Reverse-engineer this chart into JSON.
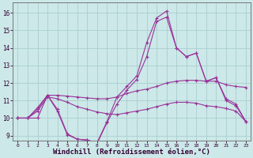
{
  "background_color": "#cce8e8",
  "grid_color": "#aacece",
  "line_color": "#993399",
  "marker_color": "#993399",
  "xlabel": "Windchill (Refroidissement éolien,°C)",
  "xlabel_fontsize": 6.5,
  "ytick_labels": [
    "9",
    "10",
    "11",
    "12",
    "13",
    "14",
    "15",
    "16"
  ],
  "yticks": [
    9,
    10,
    11,
    12,
    13,
    14,
    15,
    16
  ],
  "xticks": [
    0,
    1,
    2,
    3,
    4,
    5,
    6,
    7,
    8,
    9,
    10,
    11,
    12,
    13,
    14,
    15,
    16,
    17,
    18,
    19,
    20,
    21,
    22,
    23
  ],
  "xlim": [
    -0.5,
    23.5
  ],
  "ylim": [
    8.7,
    16.6
  ],
  "lines": [
    {
      "x": [
        0,
        1,
        2,
        3,
        4,
        5,
        6,
        7,
        8,
        9,
        10,
        11,
        12,
        13,
        14,
        15,
        16,
        17,
        18,
        19,
        20,
        21,
        22,
        23
      ],
      "y": [
        10.0,
        10.0,
        10.6,
        11.3,
        10.5,
        9.1,
        8.8,
        8.75,
        8.6,
        9.8,
        11.2,
        11.8,
        12.4,
        14.3,
        15.7,
        16.1,
        14.0,
        13.5,
        13.7,
        12.1,
        12.3,
        11.1,
        10.8,
        9.8
      ]
    },
    {
      "x": [
        0,
        1,
        2,
        3,
        4,
        5,
        6,
        7,
        8,
        9,
        10,
        11,
        12,
        13,
        14,
        15,
        16,
        17,
        18,
        19,
        20,
        21,
        22,
        23
      ],
      "y": [
        10.0,
        10.0,
        10.5,
        11.3,
        11.3,
        11.25,
        11.2,
        11.15,
        11.1,
        11.1,
        11.2,
        11.4,
        11.55,
        11.65,
        11.8,
        12.0,
        12.1,
        12.15,
        12.15,
        12.1,
        12.1,
        11.9,
        11.8,
        11.75
      ]
    },
    {
      "x": [
        0,
        1,
        2,
        3,
        4,
        5,
        6,
        7,
        8,
        9,
        10,
        11,
        12,
        13,
        14,
        15,
        16,
        17,
        18,
        19,
        20,
        21,
        22,
        23
      ],
      "y": [
        10.0,
        10.0,
        10.4,
        11.2,
        11.1,
        10.9,
        10.65,
        10.5,
        10.35,
        10.25,
        10.2,
        10.3,
        10.4,
        10.5,
        10.65,
        10.8,
        10.9,
        10.9,
        10.85,
        10.7,
        10.65,
        10.55,
        10.4,
        9.8
      ]
    },
    {
      "x": [
        0,
        1,
        2,
        3,
        4,
        5,
        6,
        7,
        8,
        9,
        10,
        11,
        12,
        13,
        14,
        15,
        16,
        17,
        18,
        19,
        20,
        21,
        22,
        23
      ],
      "y": [
        10.0,
        10.0,
        10.0,
        11.3,
        10.4,
        9.05,
        8.8,
        8.75,
        8.55,
        9.75,
        10.8,
        11.6,
        12.2,
        13.5,
        15.5,
        15.75,
        14.0,
        13.5,
        13.7,
        12.1,
        12.3,
        11.0,
        10.7,
        9.8
      ]
    }
  ]
}
